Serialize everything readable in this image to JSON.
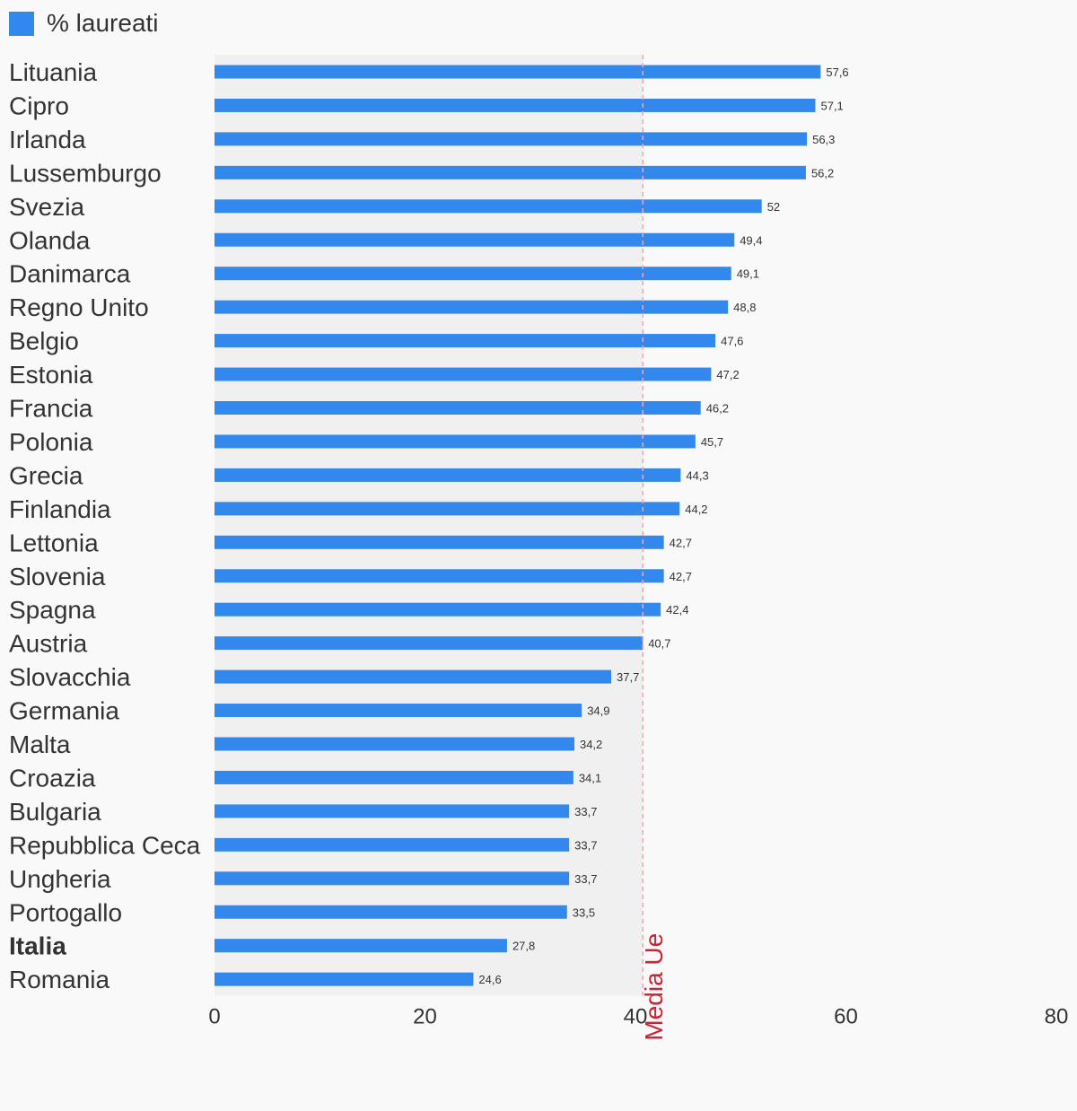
{
  "legend": {
    "label": "% laureati",
    "color": "#3388ee"
  },
  "chart_data": {
    "type": "bar",
    "orientation": "horizontal",
    "categories": [
      "Lituania",
      "Cipro",
      "Irlanda",
      "Lussemburgo",
      "Svezia",
      "Olanda",
      "Danimarca",
      "Regno Unito",
      "Belgio",
      "Estonia",
      "Francia",
      "Polonia",
      "Grecia",
      "Finlandia",
      "Lettonia",
      "Slovenia",
      "Spagna",
      "Austria",
      "Slovacchia",
      "Germania",
      "Malta",
      "Croazia",
      "Bulgaria",
      "Repubblica Ceca",
      "Ungheria",
      "Portogallo",
      "Italia",
      "Romania"
    ],
    "values": [
      57.6,
      57.1,
      56.3,
      56.2,
      52,
      49.4,
      49.1,
      48.8,
      47.6,
      47.2,
      46.2,
      45.7,
      44.3,
      44.2,
      42.7,
      42.7,
      42.4,
      40.7,
      37.7,
      34.9,
      34.2,
      34.1,
      33.7,
      33.7,
      33.7,
      33.5,
      27.8,
      24.6
    ],
    "value_labels": [
      "57,6",
      "57,1",
      "56,3",
      "56,2",
      "52",
      "49,4",
      "49,1",
      "48,8",
      "47,6",
      "47,2",
      "46,2",
      "45,7",
      "44,3",
      "44,2",
      "42,7",
      "42,7",
      "42,4",
      "40,7",
      "37,7",
      "34,9",
      "34,2",
      "34,1",
      "33,7",
      "33,7",
      "33,7",
      "33,5",
      "27,8",
      "24,6"
    ],
    "highlight_category": "Italia",
    "series": [
      {
        "name": "% laureati",
        "color": "#3388ee"
      }
    ],
    "xlim": [
      0,
      80
    ],
    "xticks": [
      0,
      20,
      40,
      60,
      80
    ],
    "xtick_labels": [
      "0",
      "20",
      "40",
      "60",
      "80"
    ],
    "reference_line": {
      "value": 40.7,
      "label": "Media Ue",
      "color": "#cc2233"
    },
    "shaded_band": {
      "from": 0,
      "to": 40.7,
      "color": "#f0f0f0"
    },
    "title": "",
    "xlabel": "",
    "ylabel": "",
    "grid": false,
    "legend_position": "top-left"
  }
}
